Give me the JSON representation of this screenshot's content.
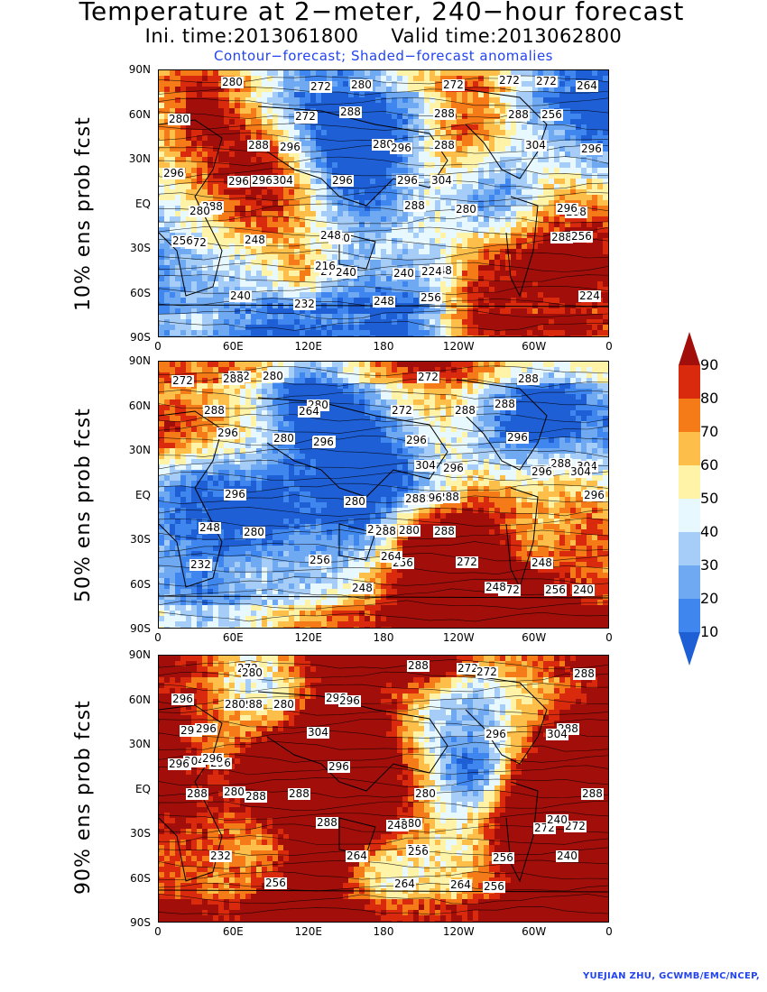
{
  "title": "Temperature at 2−meter, 240−hour forecast",
  "init_time": "Ini. time:2013061800",
  "valid_time": "Valid time:2013062800",
  "contour_note": "Contour−forecast; Shaded−forecast anomalies",
  "credit": "YUEJIAN ZHU, GCWMB/EMC/NCEP,",
  "lat_ticks": [
    "90N",
    "60N",
    "30N",
    "EQ",
    "30S",
    "60S",
    "90S"
  ],
  "lon_ticks": [
    "0",
    "60E",
    "120E",
    "180",
    "120W",
    "60W",
    "0"
  ],
  "panels": [
    {
      "label": "10% ens prob fcst",
      "contour_labels": [
        "272",
        "272",
        "280",
        "272",
        "272",
        "264",
        "280",
        "288",
        "280",
        "272",
        "256",
        "280",
        "288",
        "288",
        "280",
        "296",
        "288",
        "304",
        "288",
        "296",
        "296",
        "304",
        "296",
        "304",
        "296",
        "296",
        "296",
        "296",
        "288",
        "296",
        "288",
        "296",
        "280",
        "288",
        "280",
        "288",
        "280",
        "272",
        "256",
        "256",
        "248",
        "248",
        "252",
        "240",
        "272",
        "248",
        "240",
        "224",
        "216",
        "232",
        "224",
        "240",
        "248",
        "256"
      ]
    },
    {
      "label": "50% ens prob fcst",
      "contour_labels": [
        "272",
        "272",
        "272",
        "280",
        "288",
        "288",
        "288",
        "280",
        "272",
        "264",
        "288",
        "288",
        "296",
        "280",
        "288",
        "296",
        "296",
        "296",
        "288",
        "304",
        "304",
        "296",
        "304",
        "296",
        "288",
        "296",
        "280",
        "296",
        "296",
        "288",
        "296",
        "288",
        "288",
        "280",
        "280",
        "248",
        "256",
        "272",
        "264",
        "248",
        "232",
        "256",
        "272",
        "248",
        "240",
        "248",
        "256"
      ]
    },
    {
      "label": "90% ens prob fcst",
      "contour_labels": [
        "272",
        "272",
        "272",
        "288",
        "288",
        "280",
        "296",
        "288",
        "280",
        "296",
        "296",
        "280",
        "296",
        "304",
        "288",
        "296",
        "296",
        "304",
        "304",
        "296",
        "296",
        "296",
        "288",
        "296",
        "288",
        "288",
        "288",
        "288",
        "280",
        "280",
        "272",
        "288",
        "280",
        "272",
        "248",
        "240",
        "264",
        "256",
        "232",
        "240",
        "248",
        "256",
        "256",
        "264",
        "256",
        "264"
      ]
    }
  ],
  "colorbar": {
    "levels": [
      "10",
      "20",
      "30",
      "40",
      "50",
      "60",
      "70",
      "80",
      "90"
    ],
    "colors": [
      "#1e5fd6",
      "#3f87ee",
      "#6fa9f2",
      "#a6cdf8",
      "#e8f8ff",
      "#fff3a8",
      "#fdbf4a",
      "#f57a18",
      "#d92a0e",
      "#a20f0a"
    ]
  }
}
